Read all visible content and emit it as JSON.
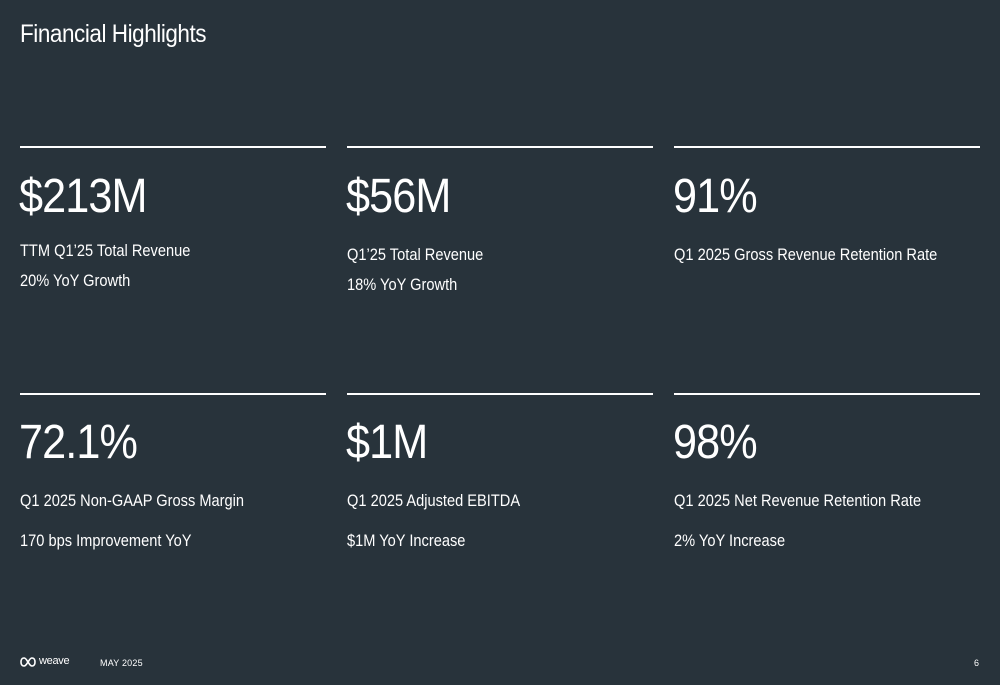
{
  "title": "Financial Highlights",
  "metrics": [
    {
      "value": "$213M",
      "line1": "TTM Q1’25 Total Revenue",
      "line2": "20% YoY Growth"
    },
    {
      "value": "$56M",
      "line1": "Q1’25 Total Revenue",
      "line2": "18% YoY Growth"
    },
    {
      "value": "91%",
      "line1": "Q1 2025 Gross Revenue Retention Rate",
      "line2": ""
    },
    {
      "value": "72.1%",
      "line1": "Q1 2025 Non-GAAP Gross Margin",
      "line2": "170 bps Improvement YoY"
    },
    {
      "value": "$1M",
      "line1": "Q1 2025 Adjusted EBITDA",
      "line2": "$1M YoY Increase"
    },
    {
      "value": "98%",
      "line1": "Q1 2025 Net Revenue Retention Rate",
      "line2": "2% YoY Increase"
    }
  ],
  "footer": {
    "logo_text": "weave",
    "logo_icon": "weave-logo-icon",
    "date": "MAY 2025",
    "page_number": "6"
  },
  "colors": {
    "background": "#28333b",
    "text": "#ffffff"
  }
}
